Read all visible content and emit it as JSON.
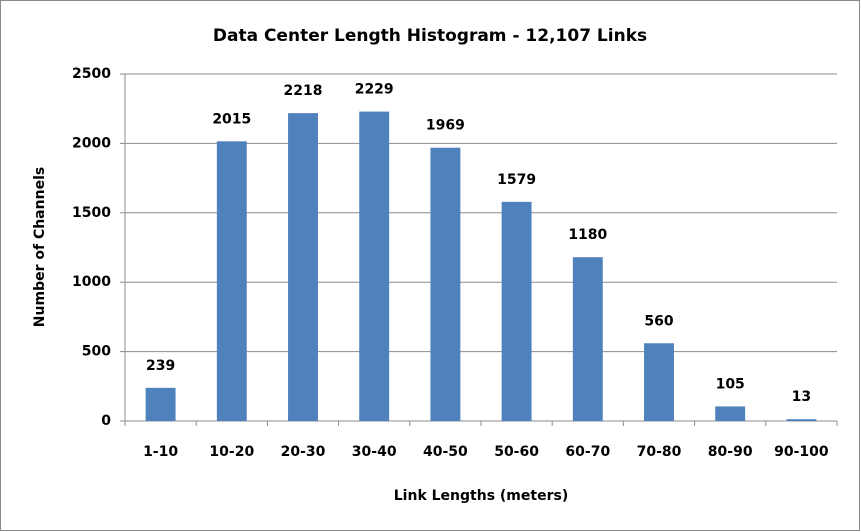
{
  "chart_data": {
    "type": "bar",
    "title": "Data Center Length Histogram - 12,107 Links",
    "x_label": "Link Lengths (meters)",
    "y_label": "Number of Channels",
    "categories": [
      "1-10",
      "10-20",
      "20-30",
      "30-40",
      "40-50",
      "50-60",
      "60-70",
      "70-80",
      "80-90",
      "90-100"
    ],
    "values": [
      239,
      2015,
      2218,
      2229,
      1969,
      1579,
      1180,
      560,
      105,
      13
    ],
    "color": "#4f81bd",
    "ylim": [
      0,
      2500
    ],
    "yticks": [
      0,
      500,
      1000,
      1500,
      2000,
      2500
    ],
    "grid": true
  }
}
